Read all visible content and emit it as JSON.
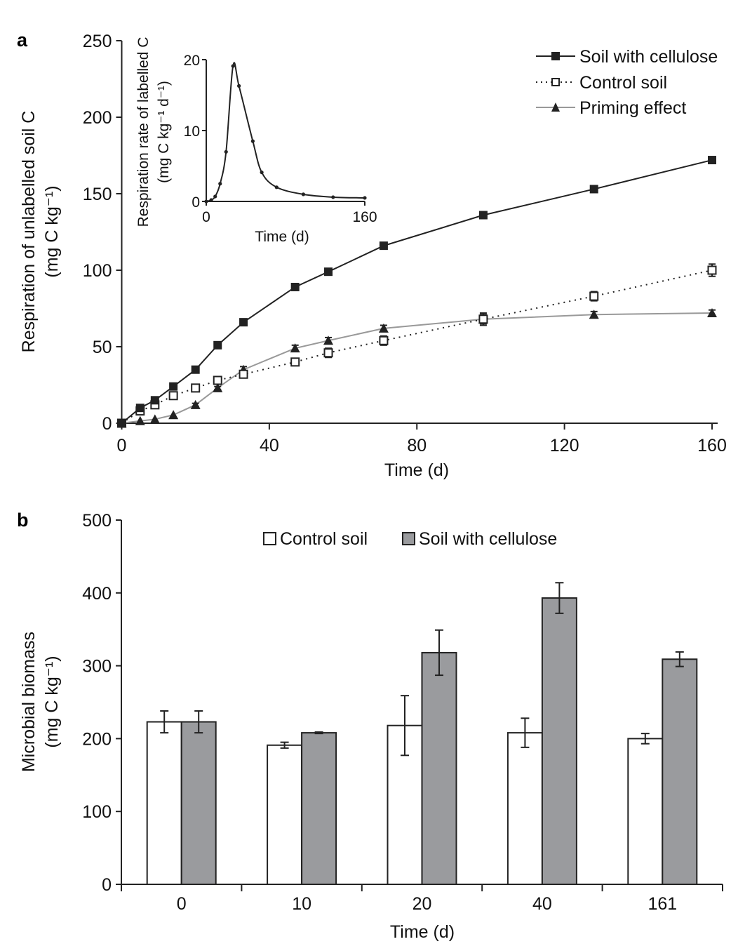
{
  "chart_data": [
    {
      "panel": "a",
      "type": "line",
      "title": "",
      "xlabel": "Time (d)",
      "ylabel_line1": "Respiration of unlabelled soil C",
      "ylabel_line2": "(mg C kg⁻¹)",
      "xlim": [
        0,
        160
      ],
      "ylim": [
        0,
        250
      ],
      "xticks": [
        0,
        40,
        80,
        120,
        160
      ],
      "yticks": [
        0,
        50,
        100,
        150,
        200,
        250
      ],
      "grid": false,
      "legend_position": "top-right",
      "x": [
        0,
        5,
        9,
        14,
        20,
        26,
        33,
        47,
        56,
        71,
        98,
        128,
        160
      ],
      "series": [
        {
          "name": "Soil with cellulose",
          "marker": "filled-square",
          "line": "solid",
          "color": "#222222",
          "values": [
            0,
            10,
            15,
            24,
            35,
            51,
            66,
            89,
            99,
            116,
            136,
            153,
            172
          ],
          "errors": [
            0,
            0,
            0,
            0,
            0,
            0,
            0,
            0,
            0,
            0,
            0,
            0,
            0
          ]
        },
        {
          "name": "Control soil",
          "marker": "open-square",
          "line": "dotted",
          "color": "#222222",
          "values": [
            0,
            8,
            12,
            18,
            23,
            28,
            32,
            40,
            46,
            54,
            68,
            83,
            100
          ],
          "errors": [
            0,
            0,
            0,
            0,
            0,
            1,
            1,
            2,
            3,
            3,
            4,
            3,
            4
          ]
        },
        {
          "name": "Priming effect",
          "marker": "filled-triangle",
          "line": "solid",
          "color": "#999999",
          "values": [
            0,
            1.5,
            2.6,
            5.4,
            12,
            23,
            35,
            49,
            54,
            62,
            68,
            71,
            72
          ],
          "errors": [
            0,
            0,
            0,
            0,
            1,
            1,
            2,
            2,
            2,
            2,
            3,
            2,
            2
          ]
        }
      ],
      "inset": {
        "type": "line",
        "xlabel": "Time (d)",
        "ylabel_line1": "Respiration rate of labelled C",
        "ylabel_line2": "(mg C kg⁻¹ d⁻¹)",
        "xlim": [
          0,
          160
        ],
        "ylim": [
          0,
          20
        ],
        "xticks": [
          0,
          160
        ],
        "yticks": [
          0,
          10,
          20
        ],
        "x": [
          0,
          5,
          9,
          14,
          20,
          27,
          33,
          47,
          56,
          71,
          98,
          128,
          160
        ],
        "values": [
          0,
          0.2,
          0.7,
          2.5,
          7.0,
          19.1,
          16.3,
          8.5,
          4.1,
          2.0,
          1.0,
          0.6,
          0.5
        ]
      }
    },
    {
      "panel": "b",
      "type": "bar",
      "title": "",
      "xlabel": "Time (d)",
      "ylabel_line1": "Microbial biomass",
      "ylabel_line2": "(mg C kg⁻¹)",
      "ylim": [
        0,
        500
      ],
      "yticks": [
        0,
        100,
        200,
        300,
        400,
        500
      ],
      "grid": false,
      "legend_position": "top-center",
      "categories": [
        "0",
        "10",
        "20",
        "40",
        "161"
      ],
      "series": [
        {
          "name": "Control soil",
          "color": "#ffffff",
          "values": [
            223,
            191,
            218,
            208,
            200
          ],
          "errors": [
            15,
            4,
            41,
            20,
            7
          ]
        },
        {
          "name": "Soil with cellulose",
          "color": "#9a9b9e",
          "values": [
            223,
            208,
            318,
            393,
            309
          ],
          "errors": [
            15,
            1,
            31,
            21,
            10
          ]
        }
      ]
    }
  ],
  "panel_labels": {
    "a": "a",
    "b": "b"
  }
}
